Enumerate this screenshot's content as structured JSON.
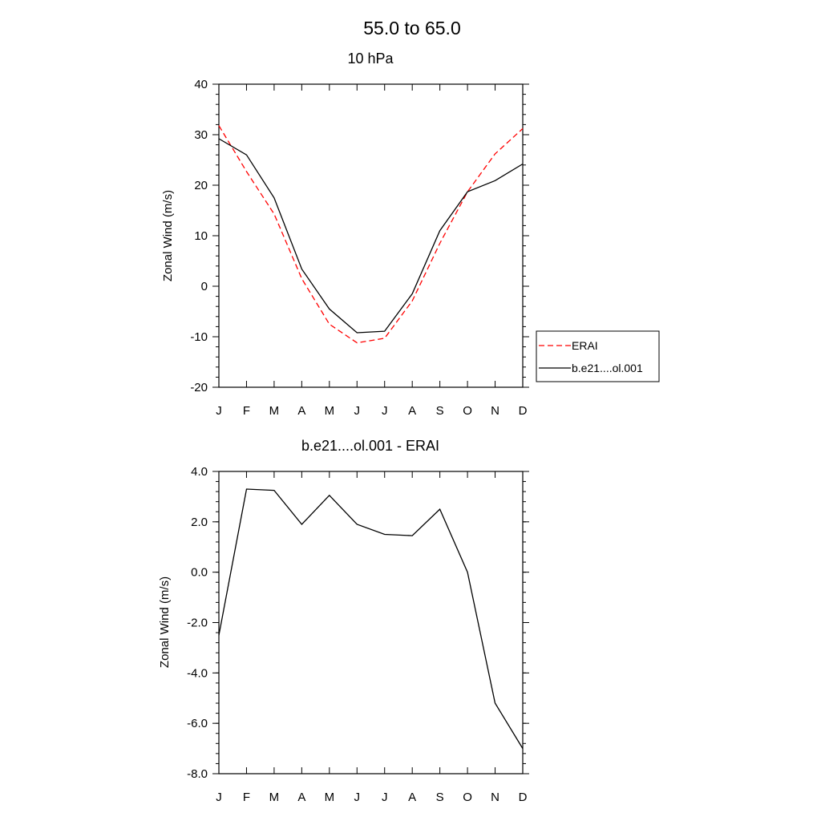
{
  "figure_title": "55.0 to  65.0",
  "chart_data": [
    {
      "type": "line",
      "title": "10 hPa",
      "ylabel": "Zonal Wind (m/s)",
      "xlabel": "",
      "categories": [
        "J",
        "F",
        "M",
        "A",
        "M",
        "J",
        "J",
        "A",
        "S",
        "O",
        "N",
        "D"
      ],
      "ylim": [
        -20,
        40
      ],
      "yticks": [
        "-20",
        "-10",
        "0",
        "10",
        "20",
        "30",
        "40"
      ],
      "yminor_step": 2,
      "grid": false,
      "legend_placement": "right",
      "series": [
        {
          "name": "ERAI",
          "color": "#ff0000",
          "dash": "dashed",
          "values": [
            31.8,
            22.7,
            14.3,
            1.5,
            -7.5,
            -11.2,
            -10.3,
            -2.9,
            8.5,
            18.7,
            26.2,
            31.2
          ]
        },
        {
          "name": "b.e21....ol.001",
          "color": "#000000",
          "dash": "solid",
          "values": [
            29.2,
            26.0,
            17.5,
            3.4,
            -4.5,
            -9.2,
            -8.9,
            -1.5,
            11.0,
            18.7,
            20.9,
            24.2
          ]
        }
      ]
    },
    {
      "type": "line",
      "title": "b.e21....ol.001 - ERAI",
      "ylabel": "Zonal Wind (m/s)",
      "xlabel": "",
      "categories": [
        "J",
        "F",
        "M",
        "A",
        "M",
        "J",
        "J",
        "A",
        "S",
        "O",
        "N",
        "D"
      ],
      "ylim": [
        -8,
        4
      ],
      "yticks": [
        "-8.0",
        "-6.0",
        "-4.0",
        "-2.0",
        "0.0",
        "2.0",
        "4.0"
      ],
      "yminor_step": 0.4,
      "grid": false,
      "series": [
        {
          "color": "#000000",
          "dash": "solid",
          "values": [
            -2.5,
            3.3,
            3.25,
            1.9,
            3.05,
            1.9,
            1.5,
            1.45,
            2.5,
            0.0,
            -5.2,
            -7.0
          ]
        }
      ]
    }
  ]
}
